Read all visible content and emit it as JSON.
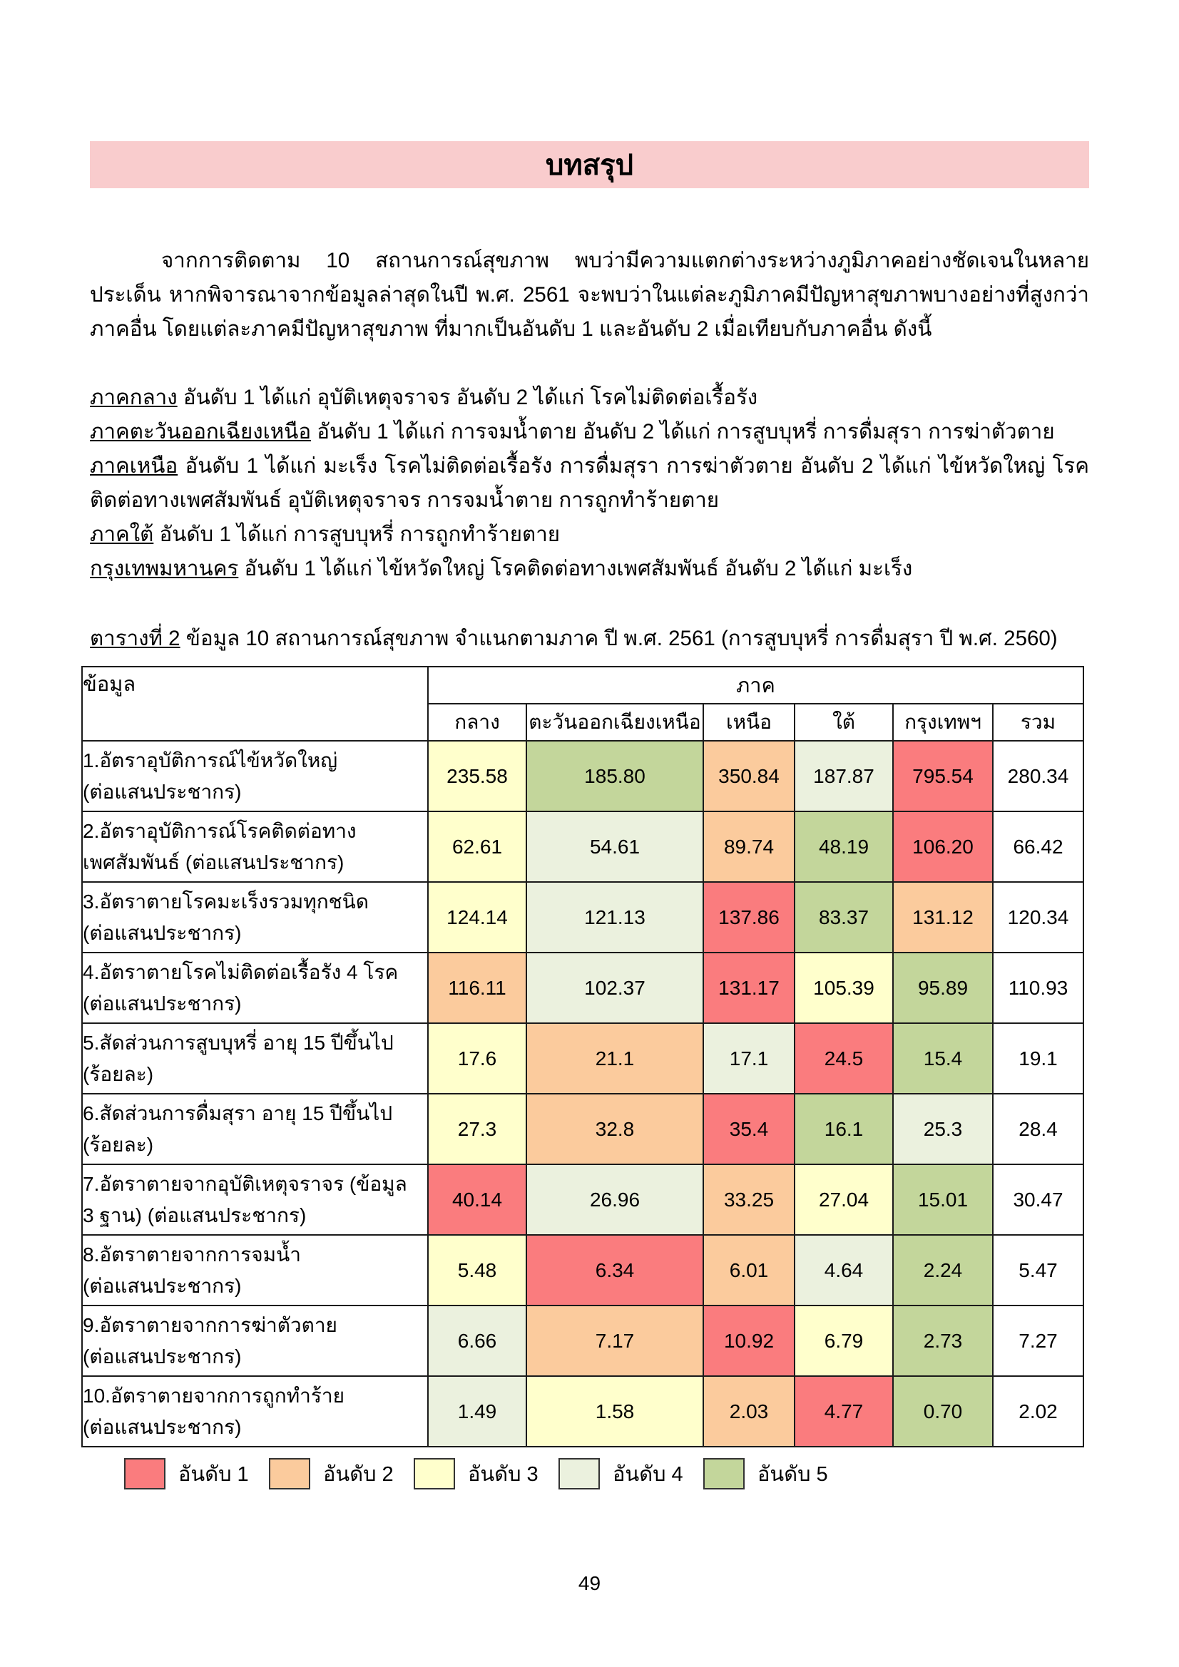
{
  "banner": {
    "title": "บทสรุป",
    "background": "#F9CCCD"
  },
  "intro_paragraph": "จากการติดตาม 10 สถานการณ์สุขภาพ พบว่ามีความแตกต่างระหว่างภูมิภาคอย่างชัดเจนในหลายประเด็น หากพิจารณาจากข้อมูลล่าสุดในปี พ.ศ. 2561 จะพบว่าในแต่ละภูมิภาคมีปัญหาสุขภาพบางอย่างที่สูงกว่าภาคอื่น โดยแต่ละภาคมีปัญหาสุขภาพ ที่มากเป็นอันดับ 1 และอันดับ 2 เมื่อเทียบกับภาคอื่น ดังนี้",
  "regions": [
    {
      "name": "ภาคกลาง",
      "text": " อันดับ 1 ได้แก่ อุบัติเหตุจราจร อันดับ 2 ได้แก่ โรคไม่ติดต่อเรื้อรัง"
    },
    {
      "name": "ภาคตะวันออกเฉียงเหนือ",
      "text": " อันดับ 1 ได้แก่ การจมน้ำตาย อันดับ 2 ได้แก่ การสูบบุหรี่ การดื่มสุรา การฆ่าตัวตาย"
    },
    {
      "name": "ภาคเหนือ",
      "text": " อันดับ 1 ได้แก่ มะเร็ง โรคไม่ติดต่อเรื้อรัง การดื่มสุรา การฆ่าตัวตาย อันดับ 2 ได้แก่ ไข้หวัดใหญ่ โรคติดต่อทางเพศสัมพันธ์ อุบัติเหตุจราจร การจมน้ำตาย การถูกทำร้ายตาย"
    },
    {
      "name": "ภาคใต้",
      "text": " อันดับ 1 ได้แก่ การสูบบุหรี่ การถูกทำร้ายตาย"
    },
    {
      "name": "กรุงเทพมหานคร",
      "text": " อันดับ 1 ได้แก่ ไข้หวัดใหญ่ โรคติดต่อทางเพศสัมพันธ์ อันดับ 2 ได้แก่ มะเร็ง"
    }
  ],
  "table_title": {
    "prefix": "ตารางที่ 2",
    "rest": " ข้อมูล 10 สถานการณ์สุขภาพ จำแนกตามภาค ปี พ.ศ. 2561 (การสูบบุหรี่ การดื่มสุรา ปี พ.ศ. 2560)"
  },
  "rank_colors": {
    "1": "#FA7C7E",
    "2": "#FBCB9D",
    "3": "#FFFFCC",
    "4": "#EBF1DE",
    "5": "#C3D69B",
    "0": "#FFFFFF"
  },
  "table": {
    "header": {
      "data_label": "ข้อมูล",
      "region_label": "ภาค",
      "columns": [
        "กลาง",
        "ตะวันออกเฉียงเหนือ",
        "เหนือ",
        "ใต้",
        "กรุงเทพฯ",
        "รวม"
      ]
    },
    "rows": [
      {
        "label": [
          "1.อัตราอุบัติการณ์ไข้หวัดใหญ่",
          "(ต่อแสนประชากร)"
        ],
        "values": [
          "235.58",
          "185.80",
          "350.84",
          "187.87",
          "795.54",
          "280.34"
        ],
        "ranks": [
          3,
          5,
          2,
          4,
          1,
          0
        ]
      },
      {
        "label": [
          "2.อัตราอุบัติการณ์โรคติดต่อทาง",
          "เพศสัมพันธ์ (ต่อแสนประชากร)"
        ],
        "values": [
          "62.61",
          "54.61",
          "89.74",
          "48.19",
          "106.20",
          "66.42"
        ],
        "ranks": [
          3,
          4,
          2,
          5,
          1,
          0
        ]
      },
      {
        "label": [
          "3.อัตราตายโรคมะเร็งรวมทุกชนิด",
          "(ต่อแสนประชากร)"
        ],
        "values": [
          "124.14",
          "121.13",
          "137.86",
          "83.37",
          "131.12",
          "120.34"
        ],
        "ranks": [
          3,
          4,
          1,
          5,
          2,
          0
        ]
      },
      {
        "label": [
          "4.อัตราตายโรคไม่ติดต่อเรื้อรัง 4 โรค",
          "(ต่อแสนประชากร)"
        ],
        "values": [
          "116.11",
          "102.37",
          "131.17",
          "105.39",
          "95.89",
          "110.93"
        ],
        "ranks": [
          2,
          4,
          1,
          3,
          5,
          0
        ]
      },
      {
        "label": [
          "5.สัดส่วนการสูบบุหรี่ อายุ 15 ปีขึ้นไป",
          "(ร้อยละ)"
        ],
        "values": [
          "17.6",
          "21.1",
          "17.1",
          "24.5",
          "15.4",
          "19.1"
        ],
        "ranks": [
          3,
          2,
          4,
          1,
          5,
          0
        ]
      },
      {
        "label": [
          "6.สัดส่วนการดื่มสุรา อายุ 15 ปีขึ้นไป",
          "(ร้อยละ)"
        ],
        "values": [
          "27.3",
          "32.8",
          "35.4",
          "16.1",
          "25.3",
          "28.4"
        ],
        "ranks": [
          3,
          2,
          1,
          5,
          4,
          0
        ]
      },
      {
        "label": [
          "7.อัตราตายจากอุบัติเหตุจราจร (ข้อมูล",
          "3 ฐาน) (ต่อแสนประชากร)"
        ],
        "values": [
          "40.14",
          "26.96",
          "33.25",
          "27.04",
          "15.01",
          "30.47"
        ],
        "ranks": [
          1,
          4,
          2,
          3,
          5,
          0
        ]
      },
      {
        "label": [
          "8.อัตราตายจากการจมน้ำ",
          "(ต่อแสนประชากร)"
        ],
        "values": [
          "5.48",
          "6.34",
          "6.01",
          "4.64",
          "2.24",
          "5.47"
        ],
        "ranks": [
          3,
          1,
          2,
          4,
          5,
          0
        ]
      },
      {
        "label": [
          "9.อัตราตายจากการฆ่าตัวตาย",
          "(ต่อแสนประชากร)"
        ],
        "values": [
          "6.66",
          "7.17",
          "10.92",
          "6.79",
          "2.73",
          "7.27"
        ],
        "ranks": [
          4,
          2,
          1,
          3,
          5,
          0
        ]
      },
      {
        "label": [
          "10.อัตราตายจากการถูกทำร้าย",
          "(ต่อแสนประชากร)"
        ],
        "values": [
          "1.49",
          "1.58",
          "2.03",
          "4.77",
          "0.70",
          "2.02"
        ],
        "ranks": [
          4,
          3,
          2,
          1,
          5,
          0
        ]
      }
    ]
  },
  "legend": [
    {
      "label": "อันดับ 1",
      "rank": 1
    },
    {
      "label": "อันดับ 2",
      "rank": 2
    },
    {
      "label": "อันดับ 3",
      "rank": 3
    },
    {
      "label": "อันดับ 4",
      "rank": 4
    },
    {
      "label": "อันดับ 5",
      "rank": 5
    }
  ],
  "page_number": "49"
}
